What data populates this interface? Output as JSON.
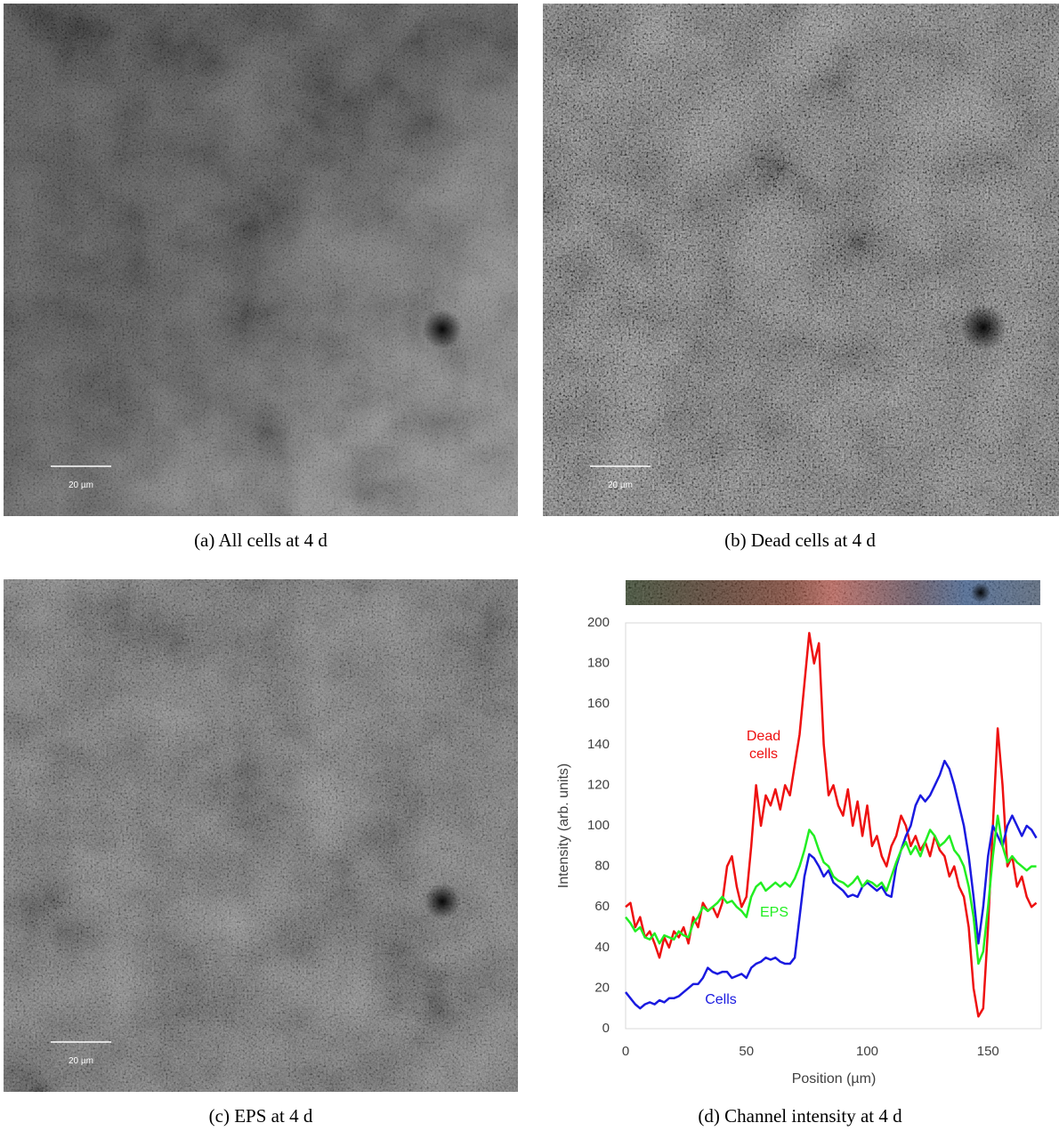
{
  "panels": [
    {
      "caption": "(a) All cells at 4 d",
      "scale_bar": "20 µm"
    },
    {
      "caption": "(b) Dead cells at 4 d",
      "scale_bar": "20 µm"
    },
    {
      "caption": "(c) EPS at 4 d",
      "scale_bar": "20 µm"
    },
    {
      "caption": "(d) Channel intensity at 4 d"
    }
  ],
  "chart_data": {
    "type": "line",
    "x_label": "Position (µm)",
    "y_label": "Intensity (arb. units)",
    "xlim": [
      0,
      172
    ],
    "xticks": [
      0,
      50,
      100,
      150
    ],
    "ylim": [
      0,
      200
    ],
    "yticks": [
      0,
      20,
      40,
      60,
      80,
      100,
      120,
      140,
      160,
      180,
      200
    ],
    "x": [
      0,
      2,
      4,
      6,
      8,
      10,
      12,
      14,
      16,
      18,
      20,
      22,
      24,
      26,
      28,
      30,
      32,
      34,
      36,
      38,
      40,
      42,
      44,
      46,
      48,
      50,
      52,
      54,
      56,
      58,
      60,
      62,
      64,
      66,
      68,
      70,
      72,
      74,
      76,
      78,
      80,
      82,
      84,
      86,
      88,
      90,
      92,
      94,
      96,
      98,
      100,
      102,
      104,
      106,
      108,
      110,
      112,
      114,
      116,
      118,
      120,
      122,
      124,
      126,
      128,
      130,
      132,
      134,
      136,
      138,
      140,
      142,
      144,
      146,
      148,
      150,
      152,
      154,
      156,
      158,
      160,
      162,
      164,
      166,
      168,
      170
    ],
    "series": [
      {
        "name": "Dead cells",
        "color": "#ee1111",
        "values": [
          60,
          62,
          50,
          55,
          45,
          48,
          42,
          35,
          45,
          40,
          48,
          45,
          50,
          42,
          55,
          50,
          62,
          58,
          60,
          55,
          62,
          80,
          85,
          70,
          60,
          65,
          90,
          120,
          100,
          115,
          110,
          118,
          108,
          120,
          115,
          130,
          145,
          170,
          195,
          180,
          190,
          140,
          115,
          120,
          110,
          105,
          118,
          100,
          112,
          95,
          110,
          90,
          95,
          85,
          80,
          90,
          95,
          105,
          100,
          90,
          95,
          88,
          92,
          85,
          95,
          88,
          85,
          75,
          80,
          70,
          65,
          50,
          20,
          6,
          10,
          50,
          100,
          148,
          120,
          80,
          85,
          70,
          75,
          65,
          60,
          62
        ]
      },
      {
        "name": "Cells",
        "color": "#1a1ae0",
        "values": [
          18,
          15,
          12,
          10,
          12,
          13,
          12,
          14,
          13,
          15,
          15,
          16,
          18,
          20,
          22,
          22,
          25,
          30,
          28,
          27,
          28,
          28,
          25,
          26,
          27,
          25,
          30,
          32,
          33,
          35,
          34,
          35,
          33,
          32,
          32,
          35,
          55,
          75,
          86,
          84,
          80,
          75,
          78,
          72,
          70,
          68,
          65,
          66,
          65,
          70,
          72,
          70,
          68,
          70,
          66,
          65,
          80,
          88,
          95,
          100,
          110,
          115,
          112,
          115,
          120,
          125,
          132,
          128,
          120,
          110,
          100,
          85,
          65,
          42,
          60,
          85,
          100,
          95,
          90,
          100,
          105,
          100,
          95,
          100,
          98,
          94
        ]
      },
      {
        "name": "EPS",
        "color": "#22ee22",
        "values": [
          55,
          52,
          48,
          50,
          45,
          44,
          47,
          42,
          46,
          45,
          44,
          48,
          46,
          45,
          52,
          55,
          60,
          58,
          60,
          62,
          65,
          62,
          63,
          60,
          58,
          55,
          65,
          70,
          72,
          68,
          70,
          72,
          70,
          72,
          70,
          74,
          80,
          88,
          98,
          95,
          88,
          82,
          80,
          75,
          73,
          72,
          70,
          72,
          75,
          70,
          73,
          72,
          70,
          72,
          68,
          75,
          82,
          88,
          92,
          86,
          90,
          85,
          92,
          98,
          95,
          90,
          92,
          95,
          88,
          85,
          80,
          70,
          55,
          32,
          38,
          60,
          85,
          105,
          90,
          82,
          85,
          82,
          80,
          78,
          80,
          80
        ]
      }
    ]
  }
}
